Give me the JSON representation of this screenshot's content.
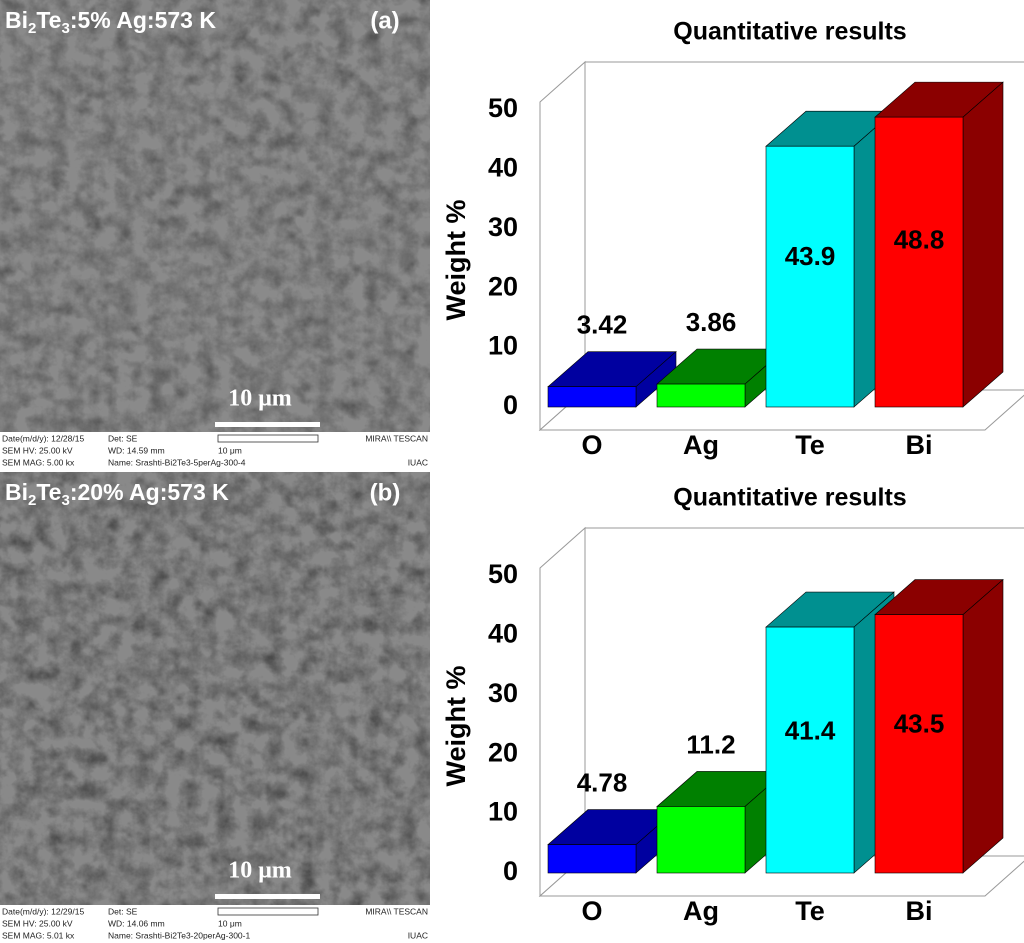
{
  "chart_data": [
    {
      "type": "bar3d",
      "title": "Quantitative results",
      "y_label": "Weight %",
      "categories": [
        "O",
        "Ag",
        "Te",
        "Bi"
      ],
      "values": [
        3.42,
        3.86,
        43.9,
        48.8
      ],
      "colors": [
        "#0000ff",
        "#00ff00",
        "#00ffff",
        "#ff0000"
      ],
      "shade_colors": [
        "#0000a0",
        "#008000",
        "#009090",
        "#8b0000"
      ],
      "ylim": [
        0,
        50
      ],
      "yticks": [
        0,
        10,
        20,
        30,
        40,
        50
      ]
    },
    {
      "type": "bar3d",
      "title": "Quantitative results",
      "y_label": "Weight %",
      "categories": [
        "O",
        "Ag",
        "Te",
        "Bi"
      ],
      "values": [
        4.78,
        11.2,
        41.4,
        43.5
      ],
      "colors": [
        "#0000ff",
        "#00ff00",
        "#00ffff",
        "#ff0000"
      ],
      "shade_colors": [
        "#0000a0",
        "#008000",
        "#009090",
        "#8b0000"
      ],
      "ylim": [
        0,
        50
      ],
      "yticks": [
        0,
        10,
        20,
        30,
        40,
        50
      ]
    }
  ],
  "images": [
    {
      "title": [
        "Bi",
        "2",
        "Te",
        "3",
        ":5% Ag:573 K"
      ],
      "label": "(a)",
      "scale": "10 μm",
      "info": [
        [
          "Date(m/d/y): 12/28/15",
          "Det: SE",
          "MIRA\\\\ TESCAN"
        ],
        [
          "SEM HV: 25.00 kV",
          "WD: 14.59 mm",
          "10 μm"
        ],
        [
          "SEM MAG: 5.00 kx",
          "Name: Srashti-Bi2Te3-5perAg-300-4",
          "IUAC"
        ]
      ]
    },
    {
      "title": [
        "Bi",
        "2",
        "Te",
        "3",
        ":20% Ag:573 K"
      ],
      "label": "(b)",
      "scale": "10 μm",
      "info": [
        [
          "Date(m/d/y): 12/29/15",
          "Det: SE",
          "MIRA\\\\ TESCAN"
        ],
        [
          "SEM HV: 25.00 kV",
          "WD: 14.06 mm",
          "10 μm"
        ],
        [
          "SEM MAG: 5.01 kx",
          "Name: Srashti-Bi2Te3-20perAg-300-1",
          "IUAC"
        ]
      ]
    }
  ]
}
